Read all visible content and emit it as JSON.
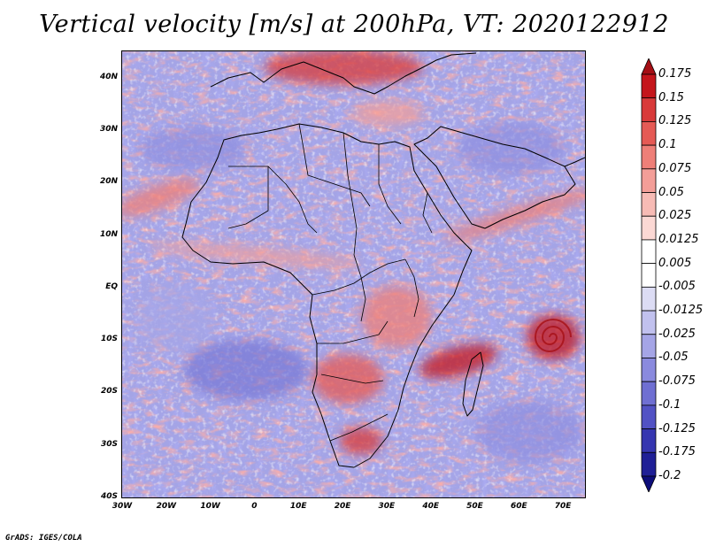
{
  "title": "Vertical velocity [m/s] at 200hPa, VT: 2020122912",
  "credit": "GrADS: IGES/COLA",
  "map": {
    "lon_range": [
      -30,
      75
    ],
    "lat_range": [
      -40,
      45
    ],
    "lat_ticks": [
      {
        "value": 40,
        "label": "40N"
      },
      {
        "value": 30,
        "label": "30N"
      },
      {
        "value": 20,
        "label": "20N"
      },
      {
        "value": 10,
        "label": "10N"
      },
      {
        "value": 0,
        "label": "EQ"
      },
      {
        "value": -10,
        "label": "10S"
      },
      {
        "value": -20,
        "label": "20S"
      },
      {
        "value": -30,
        "label": "30S"
      },
      {
        "value": -40,
        "label": "40S"
      }
    ],
    "lon_ticks": [
      {
        "value": -30,
        "label": "30W"
      },
      {
        "value": -20,
        "label": "20W"
      },
      {
        "value": -10,
        "label": "10W"
      },
      {
        "value": 0,
        "label": "0"
      },
      {
        "value": 10,
        "label": "10E"
      },
      {
        "value": 20,
        "label": "20E"
      },
      {
        "value": 30,
        "label": "30E"
      },
      {
        "value": 40,
        "label": "40E"
      },
      {
        "value": 50,
        "label": "50E"
      },
      {
        "value": 60,
        "label": "60E"
      },
      {
        "value": 70,
        "label": "70E"
      }
    ]
  },
  "colorbar": {
    "levels": [
      "0.175",
      "0.15",
      "0.125",
      "0.1",
      "0.075",
      "0.05",
      "0.025",
      "0.0125",
      "0.005",
      "-0.005",
      "-0.0125",
      "-0.025",
      "-0.05",
      "-0.075",
      "-0.1",
      "-0.125",
      "-0.175",
      "-0.2"
    ],
    "colors": [
      "#a50f15",
      "#c4161c",
      "#d83a3a",
      "#e55a55",
      "#ee7f78",
      "#f39e98",
      "#f7bbb5",
      "#fbd8d4",
      "#ffffff",
      "#ffffff",
      "#dcdcf4",
      "#c1c1ee",
      "#a5a5e6",
      "#8a8ade",
      "#6f6fd2",
      "#5252c4",
      "#3636b0",
      "#1f1f96",
      "#0d0d7a"
    ]
  }
}
